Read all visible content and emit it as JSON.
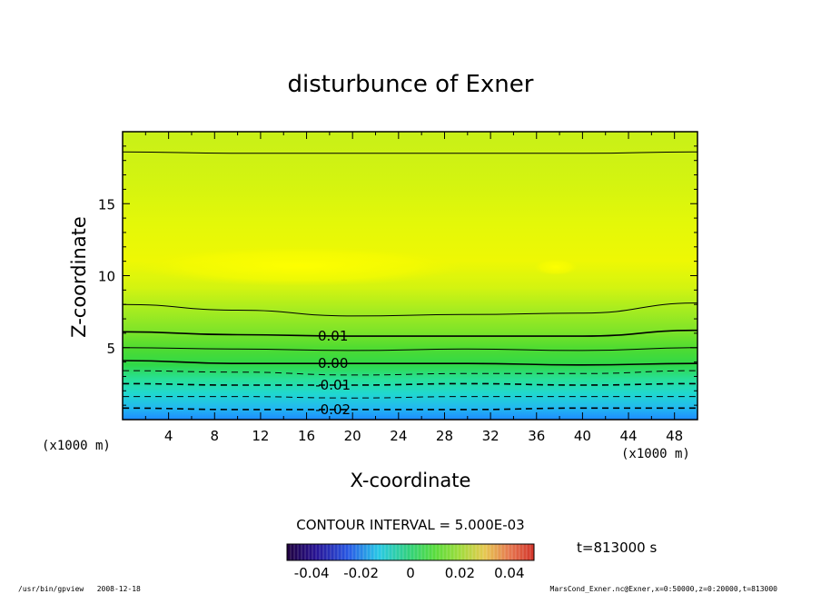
{
  "chart_data": {
    "type": "heatmap",
    "title": "disturbunce of Exner",
    "xlabel": "X-coordinate",
    "ylabel": "Z-coordinate",
    "x_unit": "(x1000 m)",
    "y_unit": "(x1000 m)",
    "xlim": [
      0,
      50
    ],
    "ylim": [
      0,
      20
    ],
    "x_ticks": [
      "4",
      "8",
      "12",
      "16",
      "20",
      "24",
      "28",
      "32",
      "36",
      "40",
      "44",
      "48"
    ],
    "y_ticks": [
      "5",
      "10",
      "15"
    ],
    "contour_interval_label": "CONTOUR INTERVAL = 5.000E-03",
    "contours": [
      {
        "level": 0.01,
        "label": "0.01",
        "style": "solid",
        "z_profile": [
          [
            0,
            6.1
          ],
          [
            10,
            5.9
          ],
          [
            20,
            5.8
          ],
          [
            30,
            5.8
          ],
          [
            40,
            5.8
          ],
          [
            50,
            6.2
          ]
        ]
      },
      {
        "level": 0.005,
        "label": "",
        "style": "solid",
        "z_profile": [
          [
            0,
            5.0
          ],
          [
            10,
            4.9
          ],
          [
            20,
            4.8
          ],
          [
            30,
            4.9
          ],
          [
            40,
            4.8
          ],
          [
            50,
            5.0
          ]
        ]
      },
      {
        "level": 0.0,
        "label": "0.00",
        "style": "solid",
        "z_profile": [
          [
            0,
            4.1
          ],
          [
            10,
            3.9
          ],
          [
            20,
            3.9
          ],
          [
            30,
            3.9
          ],
          [
            40,
            3.8
          ],
          [
            50,
            3.9
          ]
        ]
      },
      {
        "level": -0.005,
        "label": "",
        "style": "dashed",
        "z_profile": [
          [
            0,
            3.4
          ],
          [
            10,
            3.3
          ],
          [
            20,
            3.1
          ],
          [
            30,
            3.2
          ],
          [
            40,
            3.2
          ],
          [
            50,
            3.4
          ]
        ]
      },
      {
        "level": -0.01,
        "label": "-0.01",
        "style": "dashed",
        "z_profile": [
          [
            0,
            2.5
          ],
          [
            10,
            2.4
          ],
          [
            20,
            2.4
          ],
          [
            30,
            2.5
          ],
          [
            40,
            2.4
          ],
          [
            50,
            2.5
          ]
        ]
      },
      {
        "level": -0.015,
        "label": "",
        "style": "dashed",
        "z_profile": [
          [
            0,
            1.6
          ],
          [
            10,
            1.6
          ],
          [
            20,
            1.5
          ],
          [
            30,
            1.6
          ],
          [
            40,
            1.6
          ],
          [
            50,
            1.6
          ]
        ]
      },
      {
        "level": -0.02,
        "label": "-0.02",
        "style": "dashed",
        "z_profile": [
          [
            0,
            0.8
          ],
          [
            10,
            0.7
          ],
          [
            20,
            0.7
          ],
          [
            30,
            0.7
          ],
          [
            40,
            0.8
          ],
          [
            50,
            0.8
          ]
        ]
      },
      {
        "level": 0.015,
        "label": "",
        "style": "solid",
        "z_profile": [
          [
            0,
            8.0
          ],
          [
            10,
            7.6
          ],
          [
            20,
            7.2
          ],
          [
            30,
            7.3
          ],
          [
            40,
            7.4
          ],
          [
            50,
            8.1
          ]
        ]
      },
      {
        "level": 0.015,
        "label": "",
        "style": "solid",
        "z_profile": [
          [
            0,
            18.6
          ],
          [
            10,
            18.5
          ],
          [
            20,
            18.5
          ],
          [
            30,
            18.5
          ],
          [
            40,
            18.5
          ],
          [
            50,
            18.6
          ]
        ]
      }
    ],
    "colorbar": {
      "min": -0.05,
      "max": 0.05,
      "ticks": [
        "-0.04",
        "-0.02",
        "0",
        "0.02",
        "0.04"
      ],
      "tick_values": [
        -0.04,
        -0.02,
        0,
        0.02,
        0.04
      ]
    },
    "time_label": "t=813000 s",
    "colors": {
      "surface_blue": "#22a0ff",
      "cyan": "#20e0d0",
      "green": "#40d840",
      "lime": "#b0ee20",
      "yellow": "#f4f400"
    }
  },
  "footer": {
    "left": "/usr/bin/gpview   2008-12-18",
    "right": "MarsCond_Exner.nc@Exner,x=0:50000,z=0:20000,t=813000"
  }
}
